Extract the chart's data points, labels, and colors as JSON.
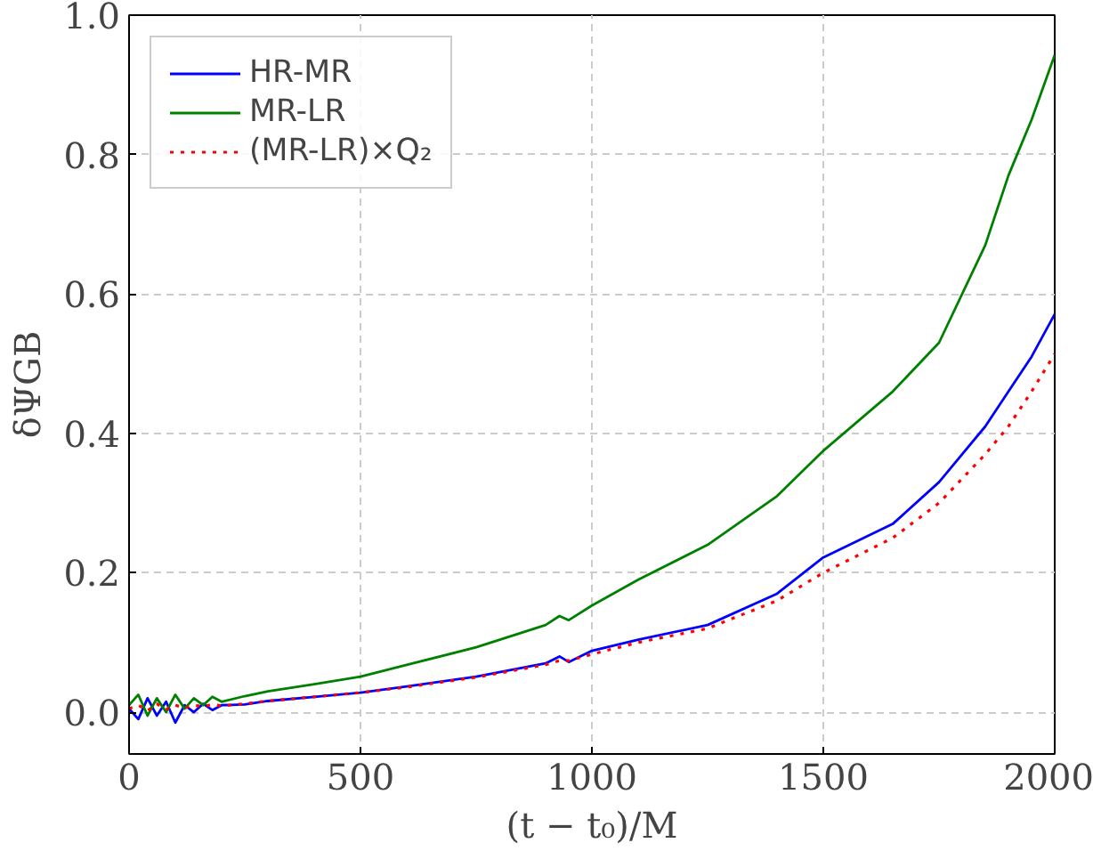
{
  "chart_data": {
    "type": "line",
    "xlabel": "(t − t₀)/M",
    "ylabel": "δΨGB",
    "x": [
      0,
      20,
      40,
      60,
      80,
      100,
      120,
      140,
      160,
      180,
      200,
      250,
      300,
      400,
      500,
      600,
      750,
      900,
      930,
      950,
      1000,
      1100,
      1250,
      1400,
      1500,
      1650,
      1750,
      1850,
      1900,
      1950,
      2000
    ],
    "series": [
      {
        "name": "HR-MR",
        "color": "#0000ff",
        "values": [
          0.005,
          -0.01,
          0.02,
          -0.005,
          0.015,
          -0.015,
          0.01,
          0.0,
          0.012,
          0.003,
          0.01,
          0.011,
          0.016,
          0.022,
          0.028,
          0.037,
          0.051,
          0.07,
          0.08,
          0.072,
          0.088,
          0.104,
          0.125,
          0.17,
          0.222,
          0.27,
          0.33,
          0.41,
          0.46,
          0.51,
          0.571
        ]
      },
      {
        "name": "MR-LR",
        "color": "#008000",
        "values": [
          0.01,
          0.025,
          -0.005,
          0.02,
          0.0,
          0.025,
          0.005,
          0.02,
          0.01,
          0.022,
          0.015,
          0.023,
          0.03,
          0.04,
          0.051,
          0.068,
          0.093,
          0.125,
          0.138,
          0.132,
          0.153,
          0.19,
          0.24,
          0.31,
          0.375,
          0.46,
          0.53,
          0.67,
          0.77,
          0.85,
          0.943
        ]
      },
      {
        "name": "(MR-LR)×Q₂",
        "color": "#ff0000",
        "line_style": "dotted",
        "values": [
          0.005,
          0.01,
          0.002,
          0.012,
          0.004,
          0.01,
          0.006,
          0.01,
          0.008,
          0.011,
          0.009,
          0.012,
          0.016,
          0.022,
          0.028,
          0.036,
          0.05,
          0.068,
          0.074,
          0.074,
          0.083,
          0.1,
          0.12,
          0.16,
          0.2,
          0.25,
          0.3,
          0.37,
          0.41,
          0.46,
          0.514
        ]
      }
    ],
    "xlim": [
      0,
      2000
    ],
    "ylim": [
      -0.06,
      1.0
    ],
    "xticks": [
      0,
      500,
      1000,
      1500,
      2000
    ],
    "yticks": [
      {
        "value": 0,
        "label": "0.0"
      },
      {
        "value": 0.2,
        "label": "0.2"
      },
      {
        "value": 0.4,
        "label": "0.4"
      },
      {
        "value": 0.6,
        "label": "0.6"
      },
      {
        "value": 0.8,
        "label": "0.8"
      },
      {
        "value": 1.0,
        "label": "1.0"
      }
    ],
    "grid": true,
    "legend": "top left",
    "line_style": "solid"
  }
}
